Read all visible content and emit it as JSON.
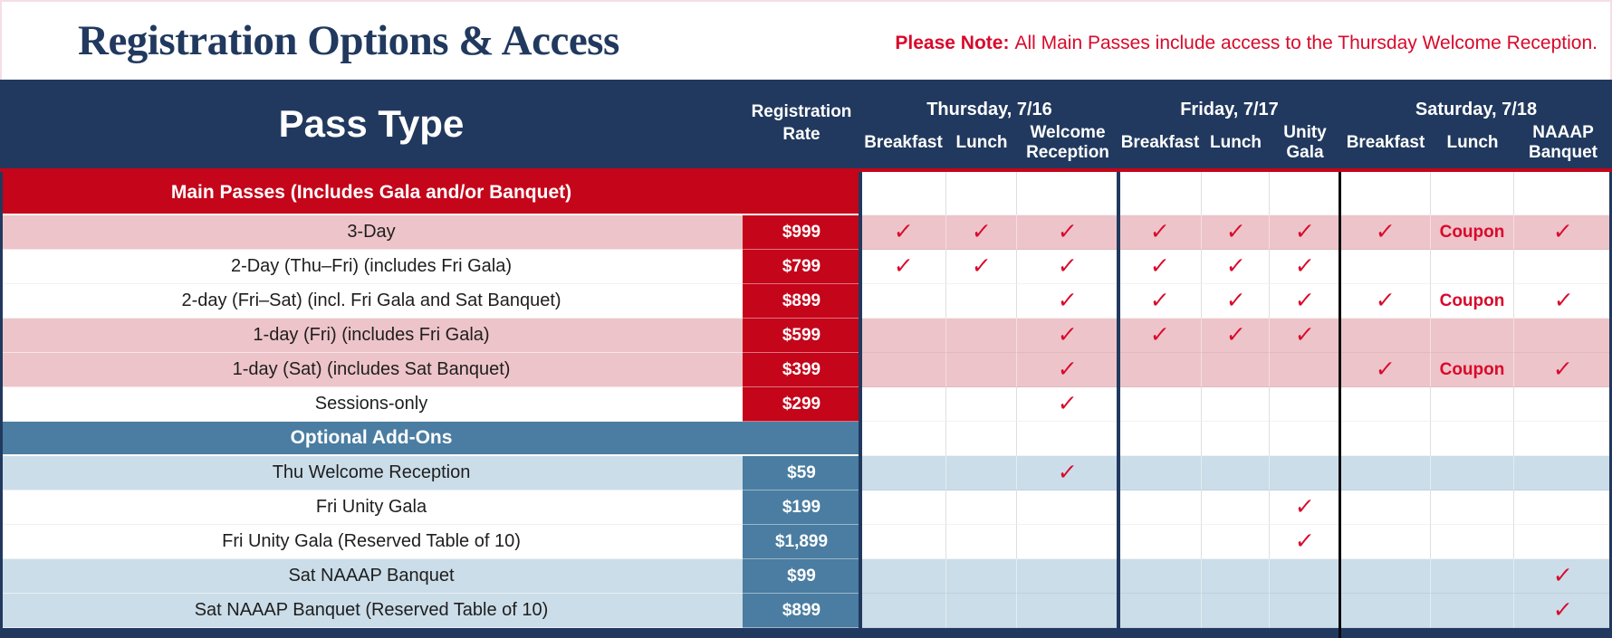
{
  "title": "Registration Options & Access",
  "note": {
    "label": "Please Note:",
    "text": "All Main Passes include access to the Thursday Welcome Reception."
  },
  "table": {
    "pass_type_header": "Pass Type",
    "rate_header": "Registration Rate",
    "day_groups": [
      {
        "label": "Thursday, 7/16",
        "columns": [
          "Breakfast",
          "Lunch",
          "Welcome Reception"
        ]
      },
      {
        "label": "Friday, 7/17",
        "columns": [
          "Breakfast",
          "Lunch",
          "Unity Gala"
        ]
      },
      {
        "label": "Saturday, 7/18",
        "columns": [
          "Breakfast",
          "Lunch",
          "NAAAP Banquet"
        ]
      }
    ],
    "check_glyph": "✓",
    "coupon_label": "Coupon",
    "sections": [
      {
        "header": "Main Passes (Includes Gala and/or Banquet)",
        "theme": "red",
        "rows": [
          {
            "label": "3-Day",
            "rate": "$999",
            "shaded": true,
            "marks": [
              "check",
              "check",
              "check",
              "check",
              "check",
              "check",
              "check",
              "coupon",
              "check"
            ]
          },
          {
            "label": "2-Day (Thu–Fri) (includes Fri Gala)",
            "rate": "$799",
            "shaded": false,
            "marks": [
              "check",
              "check",
              "check",
              "check",
              "check",
              "check",
              "",
              "",
              ""
            ]
          },
          {
            "label": "2-day (Fri–Sat) (incl. Fri Gala and Sat Banquet)",
            "rate": "$899",
            "shaded": false,
            "marks": [
              "",
              "",
              "check",
              "check",
              "check",
              "check",
              "check",
              "coupon",
              "check"
            ]
          },
          {
            "label": "1-day (Fri) (includes Fri Gala)",
            "rate": "$599",
            "shaded": true,
            "marks": [
              "",
              "",
              "check",
              "check",
              "check",
              "check",
              "",
              "",
              ""
            ]
          },
          {
            "label": "1-day (Sat) (includes Sat Banquet)",
            "rate": "$399",
            "shaded": true,
            "marks": [
              "",
              "",
              "check",
              "",
              "",
              "",
              "check",
              "coupon",
              "check"
            ]
          },
          {
            "label": "Sessions-only",
            "rate": "$299",
            "shaded": false,
            "marks": [
              "",
              "",
              "check",
              "",
              "",
              "",
              "",
              "",
              ""
            ]
          }
        ]
      },
      {
        "header": "Optional Add-Ons",
        "theme": "blue",
        "rows": [
          {
            "label": "Thu Welcome Reception",
            "rate": "$59",
            "shaded": true,
            "marks": [
              "",
              "",
              "check",
              "",
              "",
              "",
              "",
              "",
              ""
            ]
          },
          {
            "label": "Fri Unity Gala",
            "rate": "$199",
            "shaded": false,
            "marks": [
              "",
              "",
              "",
              "",
              "",
              "check",
              "",
              "",
              ""
            ]
          },
          {
            "label": "Fri Unity Gala (Reserved Table of 10)",
            "rate": "$1,899",
            "shaded": false,
            "marks": [
              "",
              "",
              "",
              "",
              "",
              "check",
              "",
              "",
              ""
            ]
          },
          {
            "label": "Sat NAAAP Banquet",
            "rate": "$99",
            "shaded": true,
            "marks": [
              "",
              "",
              "",
              "",
              "",
              "",
              "",
              "",
              "check"
            ]
          },
          {
            "label": "Sat NAAAP Banquet (Reserved Table of 10)",
            "rate": "$899",
            "shaded": true,
            "marks": [
              "",
              "",
              "",
              "",
              "",
              "",
              "",
              "",
              "check"
            ]
          }
        ]
      }
    ]
  },
  "colors": {
    "navy": "#21395E",
    "red": "#C4051A",
    "bright_red": "#D9092B",
    "pink": "#EDC4C9",
    "steel_blue": "#4A7DA1",
    "light_blue": "#CBDDE9"
  }
}
